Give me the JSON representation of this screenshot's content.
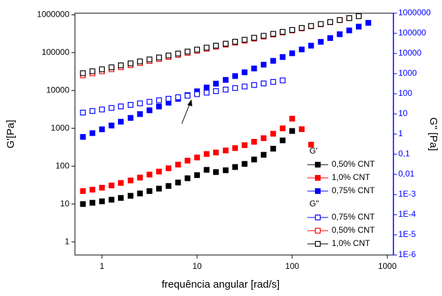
{
  "chart_data": {
    "type": "scatter",
    "x_label": "frequência angular [rad/s]",
    "y_label": "G'[Pa]",
    "y2_label": "G'' [Pa]",
    "x_log": true,
    "y_log": true,
    "y2_log": true,
    "y2_color": "#0000ff",
    "xlim": [
      0.52,
      1160
    ],
    "xticks": [
      1,
      10,
      100,
      1000
    ],
    "ylim": [
      0.45,
      1100000
    ],
    "yticks": [
      1,
      10,
      100,
      1000,
      10000,
      100000,
      1000000
    ],
    "y2lim": [
      1e-06,
      1000000
    ],
    "y2ticks": [
      1000000,
      100000,
      10000,
      1000,
      100,
      10,
      1,
      {
        "value": 0.1,
        "label": "0,1"
      },
      {
        "value": 0.01,
        "label": "0,01"
      },
      {
        "value": 0.001,
        "label": "1E-3"
      },
      {
        "value": 0.0001,
        "label": "1E-4"
      },
      {
        "value": 1e-05,
        "label": "1E-5"
      },
      {
        "value": 1e-06,
        "label": "1E-6"
      }
    ],
    "legend_titles": [
      "G'",
      "G''"
    ],
    "x": [
      0.631,
      0.794,
      1,
      1.26,
      1.58,
      2,
      2.51,
      3.16,
      3.98,
      5.01,
      6.31,
      7.94,
      10,
      12.6,
      15.8,
      20,
      25.1,
      31.6,
      39.8,
      50.1,
      63.1,
      79.4,
      100,
      126,
      158,
      200,
      251,
      316,
      398,
      501,
      631
    ],
    "series": [
      {
        "name": "0,50% CNT",
        "color": "#000000",
        "filled": true,
        "values": [
          10,
          10.8,
          11.8,
          13,
          14.5,
          16.5,
          19,
          22,
          25.5,
          30,
          37,
          48,
          58,
          80,
          70,
          78,
          95,
          115,
          150,
          200,
          290,
          480,
          850,
          null,
          null,
          null,
          null,
          null,
          null,
          null,
          null
        ]
      },
      {
        "name": "1,0% CNT",
        "color": "#ff0000",
        "filled": true,
        "values": [
          22,
          24,
          27,
          31,
          36,
          42,
          50,
          60,
          72,
          88,
          110,
          140,
          170,
          210,
          230,
          260,
          300,
          360,
          440,
          550,
          720,
          1000,
          1800,
          950,
          370,
          null,
          null,
          null,
          null,
          null,
          null
        ]
      },
      {
        "name": "0,75% CNT",
        "color": "#0000ff",
        "filled": true,
        "axis": "y2",
        "values": [
          0.726,
          1.12,
          1.73,
          2.67,
          4.12,
          6.37,
          9.84,
          15.2,
          23.4,
          36.2,
          56,
          86.3,
          133,
          206,
          318,
          491,
          759,
          1170,
          1810,
          2790,
          4320,
          6670,
          10300,
          15900,
          24500,
          37800,
          58500,
          90400,
          140000,
          215000,
          333000
        ]
      },
      {
        "name": "0,75% CNT",
        "color": "#0000ff",
        "filled": false,
        "axis": "y2",
        "values": [
          11.7,
          14,
          16.7,
          19.9,
          23.7,
          28.2,
          33.6,
          40,
          47.6,
          56.8,
          67.6,
          80.5,
          95.9,
          114,
          136,
          162,
          193,
          230,
          274,
          327,
          389,
          463,
          null,
          null,
          null,
          null,
          null,
          null,
          null,
          null,
          null
        ]
      },
      {
        "name": "0,50% CNT",
        "color": "#ff0000",
        "filled": false,
        "values": [
          25100,
          28400,
          32200,
          36500,
          41300,
          46800,
          53000,
          60000,
          67900,
          76900,
          87100,
          98600,
          111700,
          126500,
          143200,
          162200,
          183700,
          208000,
          235500,
          266700,
          302000,
          342000,
          387300,
          438500,
          496600,
          562300,
          636800,
          721100,
          816600,
          924700,
          null
        ]
      },
      {
        "name": "1,0% CNT",
        "color": "#000000",
        "filled": false,
        "values": [
          28600,
          32200,
          36300,
          40900,
          46100,
          52000,
          58600,
          66100,
          74500,
          83900,
          94600,
          106700,
          120200,
          135500,
          152800,
          172200,
          194100,
          218800,
          246600,
          278000,
          313300,
          353200,
          398100,
          448700,
          505800,
          570200,
          642700,
          724400,
          816600,
          920400,
          null
        ]
      }
    ]
  }
}
